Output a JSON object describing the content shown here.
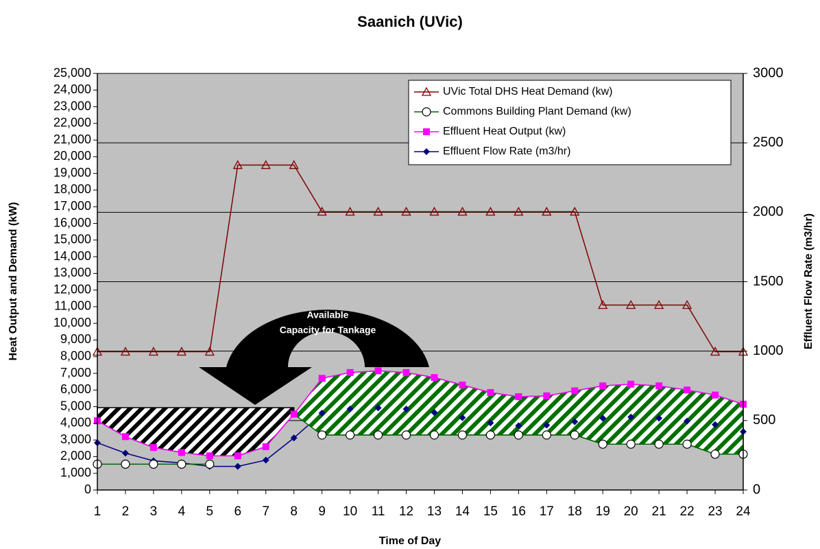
{
  "chart_data": {
    "type": "line",
    "title": "Saanich (UVic)",
    "x_label": "Time of Day",
    "y_label": "Heat Output and Demand (kW)",
    "y2_label": "Effluent Flow Rate (m3/hr)",
    "annotation": [
      "Available",
      "Capacity for Tankage"
    ],
    "x": [
      1,
      2,
      3,
      4,
      5,
      6,
      7,
      8,
      9,
      10,
      11,
      12,
      13,
      14,
      15,
      16,
      17,
      18,
      19,
      20,
      21,
      22,
      23,
      24
    ],
    "xlim": [
      1,
      24
    ],
    "series": [
      {
        "name": "UVic Total DHS Heat Demand (kw)",
        "color": "#800000",
        "marker": "triangle",
        "values": [
          8300,
          8300,
          8300,
          8300,
          8300,
          19500,
          19500,
          19500,
          16700,
          16700,
          16700,
          16700,
          16700,
          16700,
          16700,
          16700,
          16700,
          16700,
          11100,
          11100,
          11100,
          11100,
          8300,
          8300
        ]
      },
      {
        "name": "Commons Building Plant Demand (kw)",
        "color": "#006400",
        "marker": "circle",
        "values": [
          1550,
          1550,
          1550,
          1550,
          1550,
          null,
          null,
          null,
          3300,
          3300,
          3300,
          3300,
          3300,
          3300,
          3300,
          3300,
          3300,
          3300,
          2750,
          2750,
          2750,
          2750,
          2150,
          2150
        ]
      },
      {
        "name": "Effluent Heat Output (kw)",
        "color": "#ff00ff",
        "marker": "square",
        "values": [
          4150,
          3200,
          2550,
          2250,
          2050,
          2050,
          2600,
          4550,
          6700,
          7050,
          7150,
          7050,
          6750,
          6300,
          5850,
          5600,
          5650,
          5950,
          6250,
          6350,
          6250,
          6000,
          5700,
          5150
        ]
      },
      {
        "name": "Effluent Flow Rate (m3/hr)",
        "color": "#000080",
        "marker": "diamond",
        "axis": "y2",
        "values": [
          340,
          265,
          210,
          195,
          170,
          170,
          215,
          375,
          554,
          583,
          591,
          583,
          558,
          521,
          483,
          463,
          467,
          492,
          517,
          525,
          517,
          496,
          471,
          420
        ]
      }
    ],
    "ylim": [
      0,
      25000
    ],
    "yticks": [
      0,
      {
        "value": 1000,
        "label": "1,000"
      },
      {
        "value": 2000,
        "label": "2,000"
      },
      {
        "value": 3000,
        "label": "3,000"
      },
      {
        "value": 4000,
        "label": "4,000"
      },
      {
        "value": 5000,
        "label": "5,000"
      },
      {
        "value": 6000,
        "label": "6,000"
      },
      {
        "value": 7000,
        "label": "7,000"
      },
      {
        "value": 8000,
        "label": "8,000"
      },
      {
        "value": 9000,
        "label": "9,000"
      },
      {
        "value": 10000,
        "label": "10,000"
      },
      {
        "value": 11000,
        "label": "11,000"
      },
      {
        "value": 12000,
        "label": "12,000"
      },
      {
        "value": 13000,
        "label": "13,000"
      },
      {
        "value": 14000,
        "label": "14,000"
      },
      {
        "value": 15000,
        "label": "15,000"
      },
      {
        "value": 16000,
        "label": "16,000"
      },
      {
        "value": 17000,
        "label": "17,000"
      },
      {
        "value": 18000,
        "label": "18,000"
      },
      {
        "value": 19000,
        "label": "19,000"
      },
      {
        "value": 20000,
        "label": "20,000"
      },
      {
        "value": 21000,
        "label": "21,000"
      },
      {
        "value": 22000,
        "label": "22,000"
      },
      {
        "value": 23000,
        "label": "23,000"
      },
      {
        "value": 24000,
        "label": "24,000"
      },
      {
        "value": 25000,
        "label": "25,000"
      }
    ],
    "y2lim": [
      0,
      3000
    ],
    "y2ticks": [
      0,
      500,
      1000,
      1500,
      2000,
      2500,
      3000
    ],
    "grid": true,
    "legend": "upper right",
    "background": "#c0c0c0"
  }
}
